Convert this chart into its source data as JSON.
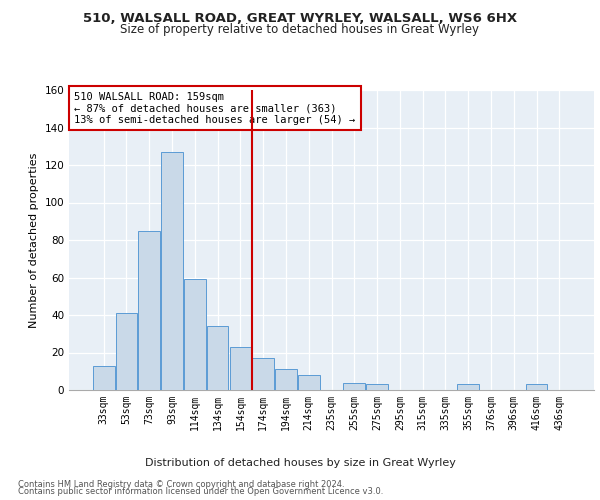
{
  "title1": "510, WALSALL ROAD, GREAT WYRLEY, WALSALL, WS6 6HX",
  "title2": "Size of property relative to detached houses in Great Wyrley",
  "xlabel": "Distribution of detached houses by size in Great Wyrley",
  "ylabel": "Number of detached properties",
  "categories": [
    "33sqm",
    "53sqm",
    "73sqm",
    "93sqm",
    "114sqm",
    "134sqm",
    "154sqm",
    "174sqm",
    "194sqm",
    "214sqm",
    "235sqm",
    "255sqm",
    "275sqm",
    "295sqm",
    "315sqm",
    "335sqm",
    "355sqm",
    "376sqm",
    "396sqm",
    "416sqm",
    "436sqm"
  ],
  "values": [
    13,
    41,
    85,
    127,
    59,
    34,
    23,
    17,
    11,
    8,
    0,
    4,
    3,
    0,
    0,
    0,
    3,
    0,
    0,
    3,
    0
  ],
  "bar_color": "#c9d9e8",
  "bar_edge_color": "#5b9bd5",
  "vline_color": "#cc0000",
  "annotation_line1": "510 WALSALL ROAD: 159sqm",
  "annotation_line2": "← 87% of detached houses are smaller (363)",
  "annotation_line3": "13% of semi-detached houses are larger (54) →",
  "annotation_box_color": "#ffffff",
  "annotation_border_color": "#cc0000",
  "footer1": "Contains HM Land Registry data © Crown copyright and database right 2024.",
  "footer2": "Contains public sector information licensed under the Open Government Licence v3.0.",
  "ylim": [
    0,
    160
  ],
  "yticks": [
    0,
    20,
    40,
    60,
    80,
    100,
    120,
    140,
    160
  ],
  "bg_color": "#e8eff6",
  "fig_bg_color": "#ffffff",
  "title1_fontsize": 9.5,
  "title2_fontsize": 8.5,
  "ylabel_fontsize": 8,
  "tick_fontsize": 7,
  "footer_fontsize": 6,
  "annotation_fontsize": 7.5
}
